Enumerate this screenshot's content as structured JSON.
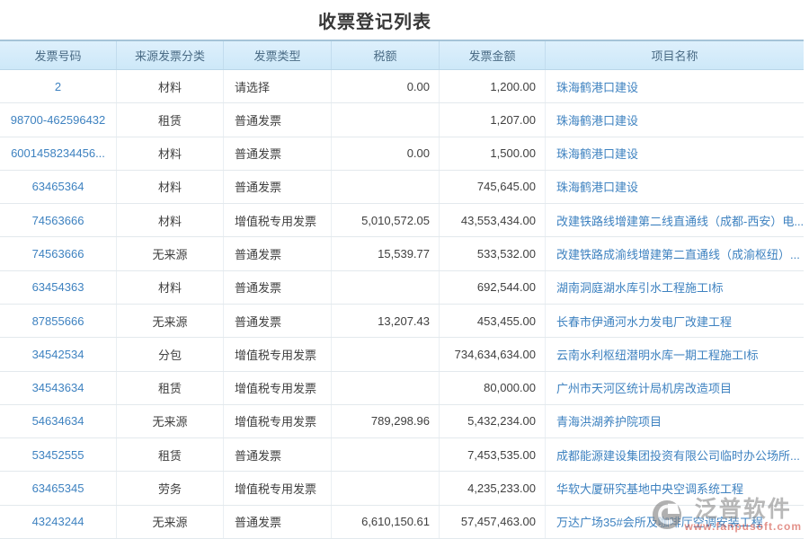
{
  "page": {
    "title": "收票登记列表"
  },
  "table": {
    "columns": [
      {
        "key": "invoice_no",
        "label": "发票号码",
        "align": "center",
        "type": "link"
      },
      {
        "key": "category",
        "label": "来源发票分类",
        "align": "center",
        "type": "text"
      },
      {
        "key": "invoice_type",
        "label": "发票类型",
        "align": "left",
        "type": "text"
      },
      {
        "key": "tax",
        "label": "税额",
        "align": "right",
        "type": "text"
      },
      {
        "key": "amount",
        "label": "发票金额",
        "align": "right",
        "type": "text"
      },
      {
        "key": "project",
        "label": "项目名称",
        "align": "left",
        "type": "link"
      }
    ],
    "rows": [
      {
        "invoice_no": "2",
        "category": "材料",
        "invoice_type": "请选择",
        "tax": "0.00",
        "amount": "1,200.00",
        "project": "珠海鹤港口建设"
      },
      {
        "invoice_no": "98700-462596432",
        "category": "租赁",
        "invoice_type": "普通发票",
        "tax": "",
        "amount": "1,207.00",
        "project": "珠海鹤港口建设"
      },
      {
        "invoice_no": "6001458234456...",
        "category": "材料",
        "invoice_type": "普通发票",
        "tax": "0.00",
        "amount": "1,500.00",
        "project": "珠海鹤港口建设"
      },
      {
        "invoice_no": "63465364",
        "category": "材料",
        "invoice_type": "普通发票",
        "tax": "",
        "amount": "745,645.00",
        "project": "珠海鹤港口建设"
      },
      {
        "invoice_no": "74563666",
        "category": "材料",
        "invoice_type": "增值税专用发票",
        "tax": "5,010,572.05",
        "amount": "43,553,434.00",
        "project": "改建铁路线增建第二线直通线（成都-西安）电..."
      },
      {
        "invoice_no": "74563666",
        "category": "无来源",
        "invoice_type": "普通发票",
        "tax": "15,539.77",
        "amount": "533,532.00",
        "project": "改建铁路成渝线增建第二直通线（成渝枢纽）..."
      },
      {
        "invoice_no": "63454363",
        "category": "材料",
        "invoice_type": "普通发票",
        "tax": "",
        "amount": "692,544.00",
        "project": "湖南洞庭湖水库引水工程施工I标"
      },
      {
        "invoice_no": "87855666",
        "category": "无来源",
        "invoice_type": "普通发票",
        "tax": "13,207.43",
        "amount": "453,455.00",
        "project": "长春市伊通河水力发电厂改建工程"
      },
      {
        "invoice_no": "34542534",
        "category": "分包",
        "invoice_type": "增值税专用发票",
        "tax": "",
        "amount": "734,634,634.00",
        "project": "云南水利枢纽潜明水库一期工程施工I标"
      },
      {
        "invoice_no": "34543634",
        "category": "租赁",
        "invoice_type": "增值税专用发票",
        "tax": "",
        "amount": "80,000.00",
        "project": "广州市天河区统计局机房改造项目"
      },
      {
        "invoice_no": "54634634",
        "category": "无来源",
        "invoice_type": "增值税专用发票",
        "tax": "789,298.96",
        "amount": "5,432,234.00",
        "project": "青海洪湖养护院项目"
      },
      {
        "invoice_no": "53452555",
        "category": "租赁",
        "invoice_type": "普通发票",
        "tax": "",
        "amount": "7,453,535.00",
        "project": "成都能源建设集团投资有限公司临时办公场所..."
      },
      {
        "invoice_no": "63465345",
        "category": "劳务",
        "invoice_type": "增值税专用发票",
        "tax": "",
        "amount": "4,235,233.00",
        "project": "华软大厦研究基地中央空调系统工程"
      },
      {
        "invoice_no": "43243244",
        "category": "无来源",
        "invoice_type": "普通发票",
        "tax": "6,610,150.61",
        "amount": "57,457,463.00",
        "project": "万达广场35#会所及咖啡厅空调安装工程"
      }
    ]
  },
  "watermark": {
    "brand": "泛普软件",
    "url": "www.fanpusoft.com",
    "logo_icon": "fanpu-logo"
  },
  "colors": {
    "link": "#3e82c0",
    "header_text": "#4a6b85",
    "header_bg_top": "#def0fc",
    "header_bg_bottom": "#cde8f8",
    "header_border_top": "#a5c4d8",
    "row_border": "#e3e9ed",
    "watermark_gray": "#8e8e8e",
    "watermark_red": "#d34f43"
  }
}
